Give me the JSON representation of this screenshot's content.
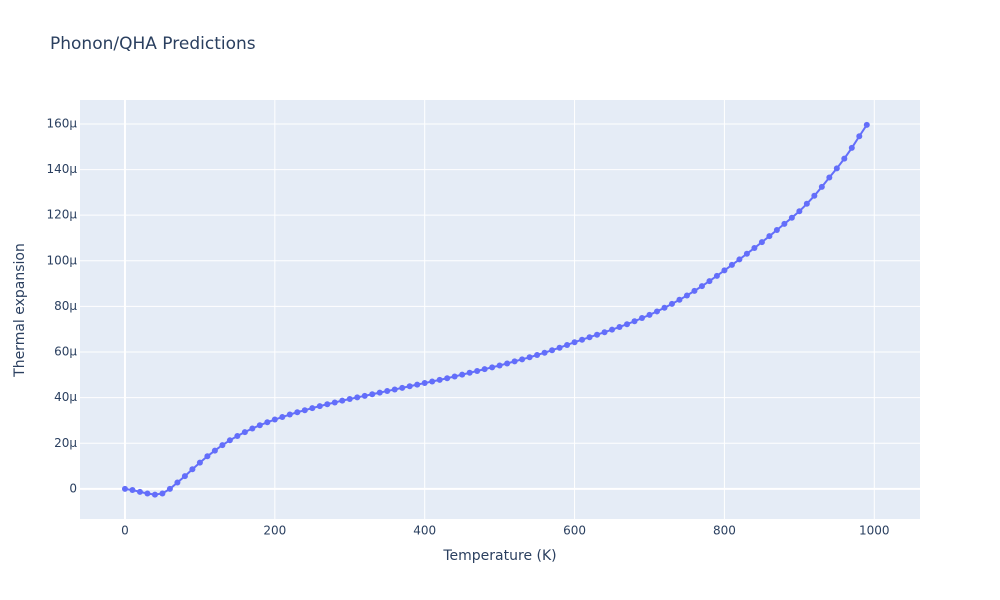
{
  "chart_data": {
    "type": "line",
    "title": "Phonon/QHA Predictions",
    "xlabel": "Temperature (K)",
    "ylabel": "Thermal expansion",
    "x": [
      0,
      10,
      20,
      30,
      40,
      50,
      60,
      70,
      80,
      90,
      100,
      110,
      120,
      130,
      140,
      150,
      160,
      170,
      180,
      190,
      200,
      210,
      220,
      230,
      240,
      250,
      260,
      270,
      280,
      290,
      300,
      310,
      320,
      330,
      340,
      350,
      360,
      370,
      380,
      390,
      400,
      410,
      420,
      430,
      440,
      450,
      460,
      470,
      480,
      490,
      500,
      510,
      520,
      530,
      540,
      550,
      560,
      570,
      580,
      590,
      600,
      610,
      620,
      630,
      640,
      650,
      660,
      670,
      680,
      690,
      700,
      710,
      720,
      730,
      740,
      750,
      760,
      770,
      780,
      790,
      800,
      810,
      820,
      830,
      840,
      850,
      860,
      870,
      880,
      890,
      900,
      910,
      920,
      930,
      940,
      950,
      960,
      970,
      980,
      990
    ],
    "series": [
      {
        "name": "Thermal expansion",
        "color": "#636efa",
        "values": [
          0,
          -5e-07,
          -1.3e-06,
          -2e-06,
          -2.5e-06,
          -2e-06,
          0,
          2.8e-06,
          5.6e-06,
          8.6e-06,
          1.15e-05,
          1.43e-05,
          1.68e-05,
          1.92e-05,
          2.13e-05,
          2.32e-05,
          2.49e-05,
          2.65e-05,
          2.79e-05,
          2.92e-05,
          3.04e-05,
          3.15e-05,
          3.26e-05,
          3.36e-05,
          3.45e-05,
          3.54e-05,
          3.63e-05,
          3.71e-05,
          3.79e-05,
          3.87e-05,
          3.94e-05,
          4.01e-05,
          4.08e-05,
          4.15e-05,
          4.22e-05,
          4.29e-05,
          4.36e-05,
          4.43e-05,
          4.5e-05,
          4.57e-05,
          4.64e-05,
          4.71e-05,
          4.78e-05,
          4.85e-05,
          4.93e-05,
          5.01e-05,
          5.09e-05,
          5.17e-05,
          5.25e-05,
          5.33e-05,
          5.41e-05,
          5.5e-05,
          5.59e-05,
          5.68e-05,
          5.77e-05,
          5.87e-05,
          5.97e-05,
          6.08e-05,
          6.19e-05,
          6.31e-05,
          6.43e-05,
          6.54e-05,
          6.65e-05,
          6.76e-05,
          6.87e-05,
          6.98e-05,
          7.1e-05,
          7.22e-05,
          7.35e-05,
          7.49e-05,
          7.63e-05,
          7.78e-05,
          7.94e-05,
          8.11e-05,
          8.29e-05,
          8.48e-05,
          8.68e-05,
          8.89e-05,
          9.11e-05,
          9.34e-05,
          9.58e-05,
          9.82e-05,
          0.0001006,
          0.0001031,
          0.0001056,
          0.0001082,
          0.0001108,
          0.0001135,
          0.0001162,
          0.0001189,
          0.0001217,
          0.000125,
          0.0001285,
          0.0001324,
          0.0001365,
          0.0001405,
          0.0001448,
          0.0001495,
          0.0001546,
          0.0001596
        ]
      }
    ],
    "xlim": [
      -60,
      1061
    ],
    "ylim": [
      -1.32e-05,
      0.0001705
    ],
    "xticks": [
      0,
      200,
      400,
      600,
      800,
      1000
    ],
    "yticks": [
      0,
      {
        "value": 2e-05,
        "label": "20µ"
      },
      {
        "value": 4e-05,
        "label": "40µ"
      },
      {
        "value": 6e-05,
        "label": "60µ"
      },
      {
        "value": 8e-05,
        "label": "80µ"
      },
      {
        "value": 0.0001,
        "label": "100µ"
      },
      {
        "value": 0.00012,
        "label": "120µ"
      },
      {
        "value": 0.00014,
        "label": "140µ"
      },
      {
        "value": 0.00016,
        "label": "160µ"
      }
    ],
    "grid": true
  }
}
